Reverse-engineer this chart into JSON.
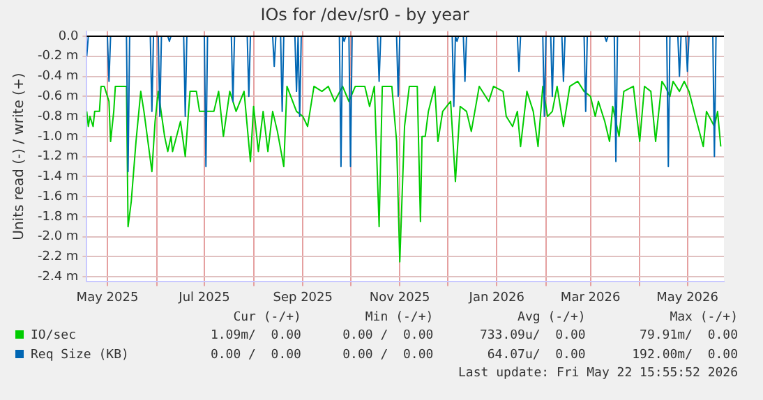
{
  "chart_data": {
    "type": "line",
    "title": "IOs for /dev/sr0 - by year",
    "ylabel": "Units read (-) / write (+)",
    "xlim": [
      "2025-04-18",
      "2026-05-24"
    ],
    "xticks": [
      {
        "value": "2025-05-01",
        "label": "May 2025"
      },
      {
        "value": "2025-06-01",
        "label": null
      },
      {
        "value": "2025-07-01",
        "label": "Jul 2025"
      },
      {
        "value": "2025-08-01",
        "label": null
      },
      {
        "value": "2025-09-01",
        "label": "Sep 2025"
      },
      {
        "value": "2025-10-01",
        "label": null
      },
      {
        "value": "2025-11-01",
        "label": "Nov 2025"
      },
      {
        "value": "2025-12-01",
        "label": null
      },
      {
        "value": "2026-01-01",
        "label": "Jan 2026"
      },
      {
        "value": "2026-02-01",
        "label": null
      },
      {
        "value": "2026-03-01",
        "label": "Mar 2026"
      },
      {
        "value": "2026-04-01",
        "label": null
      },
      {
        "value": "2026-05-01",
        "label": "May 2026"
      }
    ],
    "ylim": [
      -2.45,
      0.05
    ],
    "yticks": [
      {
        "value": 0,
        "label": "0.0"
      },
      {
        "value": -0.2,
        "label": "-0.2 m"
      },
      {
        "value": -0.4,
        "label": "-0.4 m"
      },
      {
        "value": -0.6,
        "label": "-0.6 m"
      },
      {
        "value": -0.8,
        "label": "-0.8 m"
      },
      {
        "value": -1.0,
        "label": "-1.0 m"
      },
      {
        "value": -1.2,
        "label": "-1.2 m"
      },
      {
        "value": -1.4,
        "label": "-1.4 m"
      },
      {
        "value": -1.6,
        "label": "-1.6 m"
      },
      {
        "value": -1.8,
        "label": "-1.8 m"
      },
      {
        "value": -2.0,
        "label": "-2.0 m"
      },
      {
        "value": -2.2,
        "label": "-2.2 m"
      },
      {
        "value": -2.4,
        "label": "-2.4 m"
      }
    ],
    "grid": true,
    "legend": "bottom",
    "marker": "none",
    "ref_lines": [
      {
        "axis": "y",
        "value": 0,
        "color": "#000000"
      }
    ],
    "annotations": [
      "Cur (-/+)",
      "Min (-/+)",
      "Avg (-/+)",
      "Max (-/+)",
      "1.09m/  0.00",
      "0.00 /  0.00",
      "733.09u/  0.00",
      "79.91m/  0.00",
      "0.00 /  0.00",
      "0.00 /  0.00",
      "64.07u/  0.00",
      "192.00m/  0.00",
      "Last update: Fri May 22 15:55:52 2026"
    ],
    "series": [
      {
        "name": "IO/sec",
        "color": "#00cc00",
        "x": [
          "2025-04-18",
          "2025-04-19",
          "2025-04-20",
          "2025-04-22",
          "2025-04-23",
          "2025-04-26",
          "2025-04-27",
          "2025-04-29",
          "2025-05-02",
          "2025-05-03",
          "2025-05-05",
          "2025-05-06",
          "2025-05-13",
          "2025-05-14",
          "2025-05-16",
          "2025-05-19",
          "2025-05-22",
          "2025-05-24",
          "2025-05-29",
          "2025-05-31",
          "2025-06-02",
          "2025-06-06",
          "2025-06-08",
          "2025-06-10",
          "2025-06-11",
          "2025-06-16",
          "2025-06-19",
          "2025-06-22",
          "2025-06-26",
          "2025-06-28",
          "2025-07-07",
          "2025-07-10",
          "2025-07-13",
          "2025-07-17",
          "2025-07-21",
          "2025-07-26",
          "2025-07-30",
          "2025-08-01",
          "2025-08-04",
          "2025-08-07",
          "2025-08-10",
          "2025-08-13",
          "2025-08-16",
          "2025-08-20",
          "2025-08-22",
          "2025-08-28",
          "2025-09-01",
          "2025-09-04",
          "2025-09-08",
          "2025-09-13",
          "2025-09-17",
          "2025-09-21",
          "2025-09-26",
          "2025-09-30",
          "2025-10-04",
          "2025-10-10",
          "2025-10-13",
          "2025-10-16",
          "2025-10-19",
          "2025-10-21",
          "2025-10-27",
          "2025-10-30",
          "2025-11-01",
          "2025-11-04",
          "2025-11-07",
          "2025-11-12",
          "2025-11-14",
          "2025-11-15",
          "2025-11-17",
          "2025-11-19",
          "2025-11-23",
          "2025-11-25",
          "2025-11-28",
          "2025-12-03",
          "2025-12-06",
          "2025-12-09",
          "2025-12-13",
          "2025-12-16",
          "2025-12-21",
          "2025-12-27",
          "2025-12-30",
          "2026-01-05",
          "2026-01-07",
          "2026-01-11",
          "2026-01-14",
          "2026-01-16",
          "2026-01-20",
          "2026-01-24",
          "2026-01-27",
          "2026-01-30",
          "2026-02-02",
          "2026-02-05",
          "2026-02-08",
          "2026-02-12",
          "2026-02-16",
          "2026-02-21",
          "2026-02-25",
          "2026-03-01",
          "2026-03-04",
          "2026-03-06",
          "2026-03-10",
          "2026-03-13",
          "2026-03-15",
          "2026-03-19",
          "2026-03-22",
          "2026-03-28",
          "2026-04-01",
          "2026-04-04",
          "2026-04-08",
          "2026-04-11",
          "2026-04-15",
          "2026-04-17",
          "2026-04-20",
          "2026-04-22",
          "2026-04-26",
          "2026-04-29",
          "2026-05-02",
          "2026-05-06",
          "2026-05-11",
          "2026-05-13",
          "2026-05-18",
          "2026-05-20",
          "2026-05-22"
        ],
        "values": [
          -0.75,
          -0.9,
          -0.8,
          -0.9,
          -0.75,
          -0.75,
          -0.5,
          -0.5,
          -0.65,
          -1.05,
          -0.75,
          -0.5,
          -0.5,
          -1.9,
          -1.65,
          -1.05,
          -0.55,
          -0.75,
          -1.35,
          -0.85,
          -0.55,
          -1.0,
          -1.15,
          -1.0,
          -1.15,
          -0.85,
          -1.2,
          -0.55,
          -0.55,
          -0.75,
          -0.75,
          -0.55,
          -1.0,
          -0.55,
          -0.75,
          -0.55,
          -1.25,
          -0.7,
          -1.15,
          -0.75,
          -1.15,
          -0.75,
          -0.95,
          -1.3,
          -0.5,
          -0.75,
          -0.8,
          -0.9,
          -0.5,
          -0.55,
          -0.5,
          -0.65,
          -0.5,
          -0.65,
          -0.5,
          -0.5,
          -0.7,
          -0.5,
          -1.9,
          -0.5,
          -0.5,
          -1.05,
          -2.25,
          -0.9,
          -0.5,
          -0.5,
          -1.85,
          -1.0,
          -1.0,
          -0.75,
          -0.5,
          -1.05,
          -0.75,
          -0.65,
          -1.45,
          -0.7,
          -0.75,
          -0.95,
          -0.5,
          -0.65,
          -0.5,
          -0.55,
          -0.8,
          -0.9,
          -0.75,
          -1.1,
          -0.55,
          -0.75,
          -1.1,
          -0.5,
          -0.8,
          -0.75,
          -0.5,
          -0.9,
          -0.5,
          -0.45,
          -0.55,
          -0.6,
          -0.8,
          -0.65,
          -0.85,
          -1.05,
          -0.7,
          -1.0,
          -0.55,
          -0.5,
          -1.05,
          -0.5,
          -0.55,
          -1.05,
          -0.45,
          -0.5,
          -0.6,
          -0.45,
          -0.55,
          -0.45,
          -0.55,
          -0.8,
          -1.1,
          -0.75,
          -0.9,
          -0.75,
          -1.1
        ]
      },
      {
        "name": "Req Size (KB)",
        "color": "#0066b3",
        "x": [
          "2025-04-18",
          "2025-04-19",
          "2025-05-01",
          "2025-05-02",
          "2025-05-03",
          "2025-05-13",
          "2025-05-14",
          "2025-05-15",
          "2025-05-28",
          "2025-05-29",
          "2025-05-30",
          "2025-06-02",
          "2025-06-03",
          "2025-06-04",
          "2025-06-08",
          "2025-06-09",
          "2025-06-10",
          "2025-06-18",
          "2025-06-19",
          "2025-06-20",
          "2025-07-01",
          "2025-07-02",
          "2025-07-03",
          "2025-07-18",
          "2025-07-19",
          "2025-07-20",
          "2025-07-28",
          "2025-07-29",
          "2025-07-30",
          "2025-08-13",
          "2025-08-14",
          "2025-08-15",
          "2025-08-18",
          "2025-08-19",
          "2025-08-20",
          "2025-08-27",
          "2025-08-28",
          "2025-08-29",
          "2025-08-30",
          "2025-08-31",
          "2025-09-24",
          "2025-09-25",
          "2025-09-26",
          "2025-09-27",
          "2025-09-28",
          "2025-09-30",
          "2025-10-01",
          "2025-10-02",
          "2025-10-18",
          "2025-10-19",
          "2025-10-20",
          "2025-10-30",
          "2025-10-31",
          "2025-11-01",
          "2025-12-04",
          "2025-12-05",
          "2025-12-06",
          "2025-12-07",
          "2025-12-08",
          "2025-12-11",
          "2025-12-12",
          "2025-12-13",
          "2026-01-14",
          "2026-01-15",
          "2026-01-16",
          "2026-01-30",
          "2026-01-31",
          "2026-02-01",
          "2026-02-04",
          "2026-02-05",
          "2026-02-06",
          "2026-02-11",
          "2026-02-12",
          "2026-02-13",
          "2026-02-25",
          "2026-02-26",
          "2026-02-27",
          "2026-03-10",
          "2026-03-11",
          "2026-03-12",
          "2026-03-16",
          "2026-03-17",
          "2026-03-18",
          "2026-04-18",
          "2026-04-19",
          "2026-04-20",
          "2026-04-25",
          "2026-04-26",
          "2026-04-27",
          "2026-04-30",
          "2026-05-01",
          "2026-05-02",
          "2026-05-17",
          "2026-05-18",
          "2026-05-19",
          "2026-05-22"
        ],
        "values": [
          -0.2,
          0,
          0,
          -0.45,
          0,
          0,
          -1.35,
          0,
          0,
          -0.75,
          0,
          0,
          -0.8,
          0,
          0,
          -0.05,
          0,
          0,
          -0.8,
          0,
          0,
          -1.3,
          0,
          0,
          -0.65,
          0,
          0,
          -0.6,
          0,
          0,
          -0.3,
          0,
          0,
          -0.75,
          0,
          0,
          -0.55,
          0,
          -0.8,
          0,
          0,
          -1.3,
          0,
          -0.05,
          0,
          0,
          -1.3,
          0,
          0,
          -0.45,
          0,
          0,
          -0.6,
          0,
          0,
          -0.7,
          0,
          -0.05,
          0,
          0,
          -0.45,
          0,
          0,
          -0.35,
          0,
          0,
          -0.8,
          0,
          0,
          -0.6,
          0,
          0,
          -0.45,
          0,
          0,
          -0.75,
          0,
          0,
          -0.05,
          0,
          0,
          -1.25,
          0,
          0,
          -1.3,
          0,
          0,
          -0.4,
          0,
          0,
          -0.35,
          0,
          0,
          -1.2,
          0,
          0
        ]
      }
    ]
  }
}
